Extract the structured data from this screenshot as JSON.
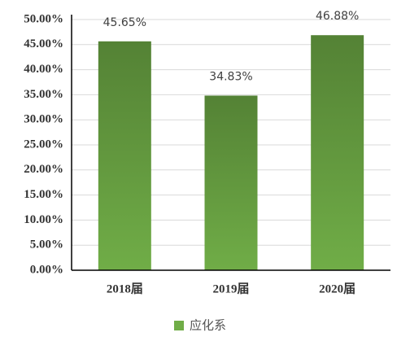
{
  "chart_data": {
    "type": "bar",
    "categories": [
      "2018届",
      "2019届",
      "2020届"
    ],
    "series": [
      {
        "name": "应化系",
        "color": "#70ad47",
        "values": [
          45.65,
          34.83,
          46.88
        ],
        "value_labels": [
          "45.65%",
          "34.83%",
          "46.88%"
        ]
      }
    ],
    "ylim": [
      0,
      50
    ],
    "yticks": [
      {
        "value": 0,
        "label": "0.00%"
      },
      {
        "value": 5,
        "label": "5.00%"
      },
      {
        "value": 10,
        "label": "10.00%"
      },
      {
        "value": 15,
        "label": "15.00%"
      },
      {
        "value": 20,
        "label": "20.00%"
      },
      {
        "value": 25,
        "label": "25.00%"
      },
      {
        "value": 30,
        "label": "30.00%"
      },
      {
        "value": 35,
        "label": "35.00%"
      },
      {
        "value": 40,
        "label": "40.00%"
      },
      {
        "value": 45,
        "label": "45.00%"
      },
      {
        "value": 50,
        "label": "50.00%"
      }
    ],
    "grid": true,
    "legend": "bottom"
  }
}
